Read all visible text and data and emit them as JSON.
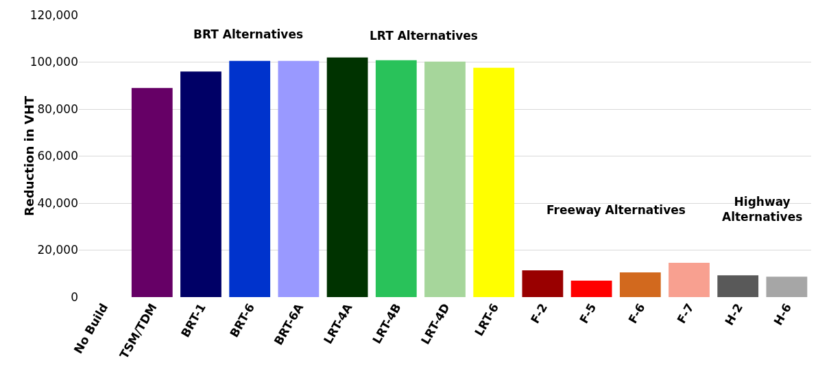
{
  "chart_data": {
    "type": "bar",
    "ylabel": "Reduction in VHT",
    "categories": [
      "No Build",
      "TSM/TDM",
      "BRT-1",
      "BRT-6",
      "BRT-6A",
      "LRT-4A",
      "LRT-4B",
      "LRT-4D",
      "LRT-6",
      "F-2",
      "F-5",
      "F-6",
      "F-7",
      "H-2",
      "H-6"
    ],
    "values": [
      0,
      89000,
      96000,
      100500,
      100500,
      102000,
      100800,
      100200,
      97600,
      11400,
      7000,
      10500,
      14600,
      9300,
      8700
    ],
    "colors": [
      "#660066",
      "#660066",
      "#000066",
      "#0033cc",
      "#9999ff",
      "#003300",
      "#29c25a",
      "#a6d69b",
      "#ffff00",
      "#990000",
      "#ff0000",
      "#d2691e",
      "#f8a090",
      "#595959",
      "#a6a6a6"
    ],
    "ylim": [
      0,
      120000
    ],
    "yticks": [
      {
        "value": 0,
        "label": "0"
      },
      {
        "value": 20000,
        "label": "20,000"
      },
      {
        "value": 40000,
        "label": "40,000"
      },
      {
        "value": 60000,
        "label": "60,000"
      },
      {
        "value": 80000,
        "label": "80,000"
      },
      {
        "value": 100000,
        "label": "100,000"
      },
      {
        "value": 120000,
        "label": "120,000"
      }
    ],
    "grid": "y",
    "annotations": [
      "BRT Alternatives",
      "LRT Alternatives",
      "Freeway Alternatives",
      "Highway\nAlternatives"
    ]
  }
}
